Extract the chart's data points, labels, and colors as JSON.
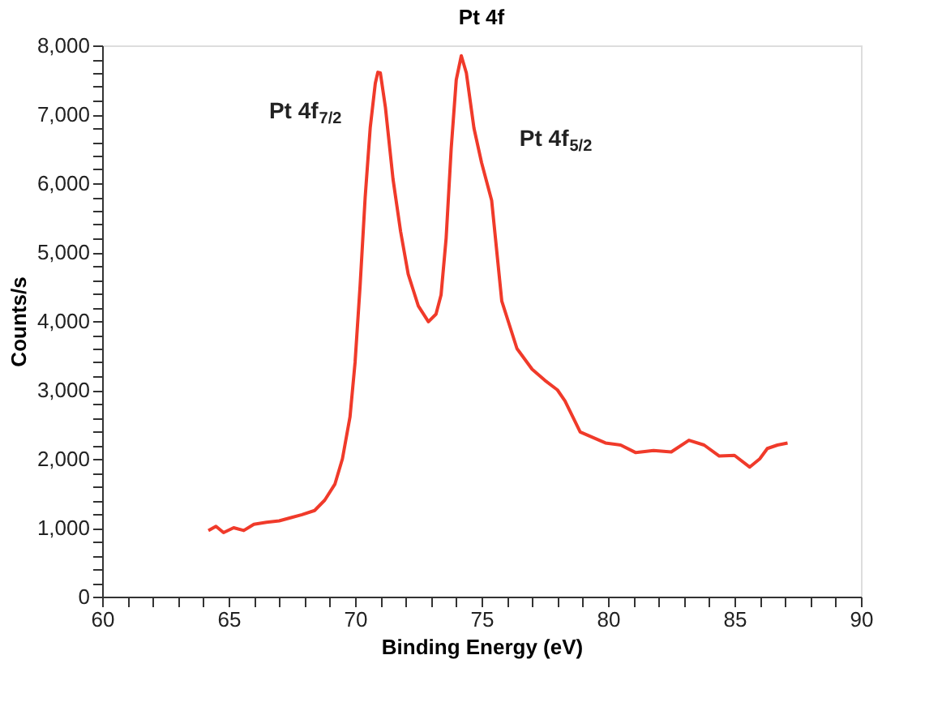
{
  "chart_data": {
    "type": "line",
    "title": "Pt 4f",
    "xlabel": "Binding Energy (eV)",
    "ylabel": "Counts/s",
    "x": [
      64.2,
      64.5,
      64.8,
      65.2,
      65.6,
      66.0,
      66.5,
      67.0,
      67.5,
      67.9,
      68.4,
      68.8,
      69.2,
      69.5,
      69.8,
      70.0,
      70.2,
      70.4,
      70.6,
      70.8,
      70.9,
      71.0,
      71.2,
      71.5,
      71.8,
      72.1,
      72.5,
      72.9,
      73.2,
      73.4,
      73.6,
      73.8,
      74.0,
      74.2,
      74.4,
      74.7,
      75.0,
      75.4,
      75.8,
      76.4,
      77.0,
      77.5,
      78.0,
      78.3,
      78.9,
      79.9,
      80.5,
      81.1,
      81.8,
      82.5,
      83.2,
      83.8,
      84.4,
      85.0,
      85.6,
      86.0,
      86.3,
      86.7,
      87.1
    ],
    "series": [
      {
        "color": "#f03a2a",
        "values": [
          960,
          1020,
          930,
          1000,
          960,
          1050,
          1080,
          1100,
          1150,
          1190,
          1250,
          1400,
          1630,
          2000,
          2610,
          3400,
          4520,
          5800,
          6810,
          7450,
          7610,
          7600,
          7100,
          6060,
          5300,
          4680,
          4220,
          3990,
          4100,
          4380,
          5200,
          6500,
          7500,
          7850,
          7600,
          6800,
          6300,
          5750,
          4290,
          3600,
          3300,
          3140,
          3000,
          2840,
          2390,
          2230,
          2200,
          2090,
          2120,
          2100,
          2270,
          2200,
          2040,
          2050,
          1880,
          2000,
          2150,
          2200,
          2230
        ]
      }
    ],
    "xlim": [
      60,
      90
    ],
    "ylim": [
      0,
      8000
    ],
    "xticks": [
      60,
      {
        "value": 61,
        "label": null
      },
      {
        "value": 62,
        "label": null
      },
      {
        "value": 63,
        "label": null
      },
      {
        "value": 64,
        "label": null
      },
      65,
      {
        "value": 66,
        "label": null
      },
      {
        "value": 67,
        "label": null
      },
      {
        "value": 68,
        "label": null
      },
      {
        "value": 69,
        "label": null
      },
      70,
      {
        "value": 71,
        "label": null
      },
      {
        "value": 72,
        "label": null
      },
      {
        "value": 73,
        "label": null
      },
      {
        "value": 74,
        "label": null
      },
      75,
      {
        "value": 76,
        "label": null
      },
      {
        "value": 77,
        "label": null
      },
      {
        "value": 78,
        "label": null
      },
      {
        "value": 79,
        "label": null
      },
      80,
      {
        "value": 81,
        "label": null
      },
      {
        "value": 82,
        "label": null
      },
      {
        "value": 83,
        "label": null
      },
      {
        "value": 84,
        "label": null
      },
      85,
      {
        "value": 86,
        "label": null
      },
      {
        "value": 87,
        "label": null
      },
      {
        "value": 88,
        "label": null
      },
      {
        "value": 89,
        "label": null
      },
      90
    ],
    "yticks": [
      0,
      {
        "value": 200,
        "label": null
      },
      {
        "value": 400,
        "label": null
      },
      {
        "value": 600,
        "label": null
      },
      {
        "value": 800,
        "label": null
      },
      {
        "value": 1000,
        "label": "1,000"
      },
      {
        "value": 1200,
        "label": null
      },
      {
        "value": 1400,
        "label": null
      },
      {
        "value": 1600,
        "label": null
      },
      {
        "value": 1800,
        "label": null
      },
      {
        "value": 2000,
        "label": "2,000"
      },
      {
        "value": 2200,
        "label": null
      },
      {
        "value": 2400,
        "label": null
      },
      {
        "value": 2600,
        "label": null
      },
      {
        "value": 2800,
        "label": null
      },
      {
        "value": 3000,
        "label": "3,000"
      },
      {
        "value": 3200,
        "label": null
      },
      {
        "value": 3400,
        "label": null
      },
      {
        "value": 3600,
        "label": null
      },
      {
        "value": 3800,
        "label": null
      },
      {
        "value": 4000,
        "label": "4,000"
      },
      {
        "value": 4200,
        "label": null
      },
      {
        "value": 4400,
        "label": null
      },
      {
        "value": 4600,
        "label": null
      },
      {
        "value": 4800,
        "label": null
      },
      {
        "value": 5000,
        "label": "5,000"
      },
      {
        "value": 5200,
        "label": null
      },
      {
        "value": 5400,
        "label": null
      },
      {
        "value": 5600,
        "label": null
      },
      {
        "value": 5800,
        "label": null
      },
      {
        "value": 6000,
        "label": "6,000"
      },
      {
        "value": 6200,
        "label": null
      },
      {
        "value": 6400,
        "label": null
      },
      {
        "value": 6600,
        "label": null
      },
      {
        "value": 6800,
        "label": null
      },
      {
        "value": 7000,
        "label": "7,000"
      },
      {
        "value": 7200,
        "label": null
      },
      {
        "value": 7400,
        "label": null
      },
      {
        "value": 7600,
        "label": null
      },
      {
        "value": 7800,
        "label": null
      },
      {
        "value": 8000,
        "label": "8,000"
      }
    ],
    "annotations": [
      "Pt 4f$_{7/2}$",
      "Pt 4f$_{5/2}$"
    ],
    "grid": false,
    "marker": "none",
    "line_style": "solid"
  }
}
